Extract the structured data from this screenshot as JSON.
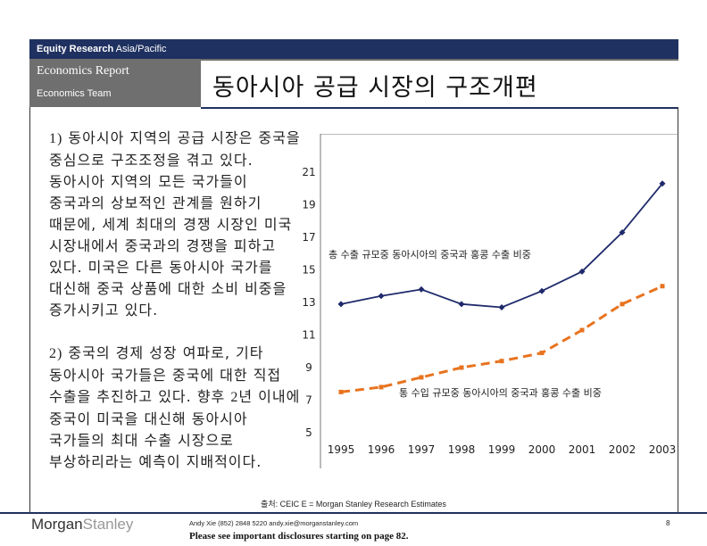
{
  "header": {
    "brand": "Equity Research",
    "region": "Asia/Pacific",
    "report_type": "Economics Report",
    "team": "Economics Team",
    "title": "동아시아 공급 시장의 구조개편"
  },
  "body": {
    "para1_num": "1)",
    "para1_text": " 동아시아 지역의 공급 시장은 중국을 중심으로 구조조정을 겪고 있다. 동아시아 지역의 모든 국가들이 중국과의 상보적인 관계를 원하기 때문에, 세계 최대의 경쟁 시장인 미국 시장내에서 중국과의 경쟁을 피하고 있다. 미국은 다른 동아시아 국가를 대신해 중국 상품에 대한 소비 비중을 증가시키고 있다.",
    "para2_num": "2)",
    "para2_text": " 중국의 경제 성장 여파로, 기타 동아시아 국가들은 중국에 대한 직접 수출을 추진하고 있다. 향후 ",
    "para2_num2": "2",
    "para2_text2": "년 이내에 중국이 미국을 대신해 동아시아 국가들의 최대 수출 시장으로 부상하리라는 예측이 지배적이다."
  },
  "chart_data": {
    "type": "line",
    "x": [
      "1995",
      "1996",
      "1997",
      "1998",
      "1999",
      "2000",
      "2001",
      "2002",
      "2003"
    ],
    "ylim": [
      5,
      21
    ],
    "yticks": [
      "5",
      "7",
      "9",
      "11",
      "13",
      "15",
      "17",
      "19",
      "21"
    ],
    "series": [
      {
        "name": "총 수출 규모중 동아시아의 중국과 홍콩 수출 비중",
        "values": [
          12.9,
          13.4,
          13.8,
          12.9,
          12.7,
          13.7,
          14.9,
          17.3,
          20.3
        ],
        "color": "#1f2a6b",
        "style": "solid"
      },
      {
        "name": "통 수입 규모중 동아시아의 중국과 홍콩 수출 비중",
        "values": [
          7.5,
          7.8,
          8.4,
          9.0,
          9.4,
          9.9,
          11.3,
          12.9,
          14.0
        ],
        "color": "#e8731e",
        "style": "dashed"
      }
    ],
    "grid": false,
    "legend": "inline labels"
  },
  "footer": {
    "source": "출처: CEIC E = Morgan Stanley Research Estimates",
    "logo_dark": "Morgan",
    "logo_light": "Stanley",
    "contact": "Andy Xie (852) 2848 5220 andy.xie@morganstanley.com",
    "disclosure": "Please see important disclosures starting on page 82.",
    "page": "8"
  }
}
